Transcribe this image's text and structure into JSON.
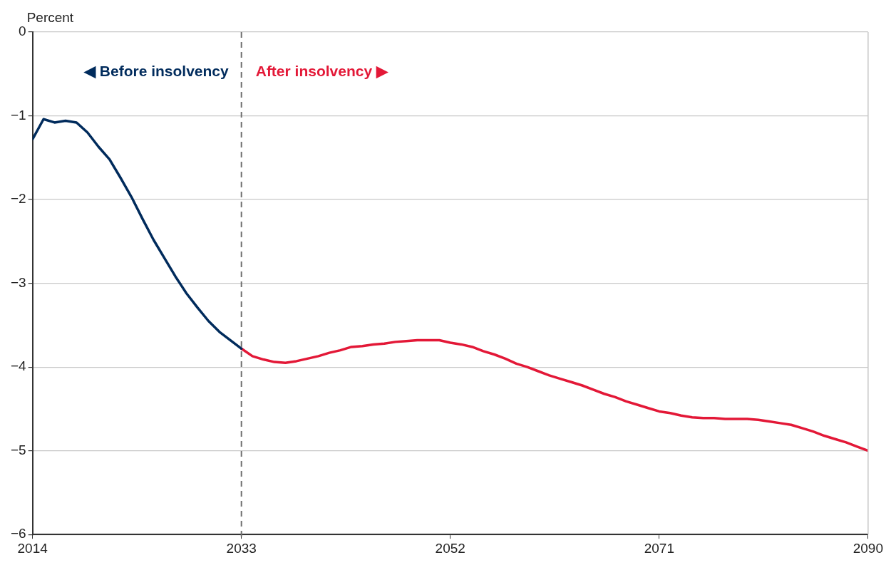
{
  "chart_data": {
    "type": "line",
    "ylabel": "Percent",
    "xlim": [
      2014,
      2090
    ],
    "xticks": [
      2014,
      2033,
      2052,
      2071,
      2090
    ],
    "ylim": [
      -6,
      0
    ],
    "yticks": [
      {
        "value": 0,
        "label": "0"
      },
      {
        "value": -1,
        "label": "−1"
      },
      {
        "value": -2,
        "label": "−2"
      },
      {
        "value": -3,
        "label": "−3"
      },
      {
        "value": -4,
        "label": "−4"
      },
      {
        "value": -5,
        "label": "−5"
      },
      {
        "value": -6,
        "label": "−6"
      }
    ],
    "grid": "y",
    "legend": false,
    "marker": "none",
    "line_style": "solid",
    "ref_lines": [
      {
        "axis": "x",
        "value": 2033,
        "color": "#707070",
        "line_style": "dashed"
      }
    ],
    "series": [
      {
        "name": "◀ Before insolvency",
        "color": "#002b5c",
        "x": [
          2014,
          2015,
          2016,
          2017,
          2018,
          2019,
          2020,
          2021,
          2022,
          2023,
          2024,
          2025,
          2026,
          2027,
          2028,
          2029,
          2030,
          2031,
          2032,
          2033
        ],
        "values": [
          -1.28,
          -1.04,
          -1.08,
          -1.06,
          -1.08,
          -1.2,
          -1.37,
          -1.52,
          -1.74,
          -1.97,
          -2.23,
          -2.48,
          -2.7,
          -2.92,
          -3.12,
          -3.29,
          -3.45,
          -3.58,
          -3.68,
          -3.78
        ]
      },
      {
        "name": "After insolvency ▶",
        "color": "#e31837",
        "x": [
          2033,
          2034,
          2035,
          2036,
          2037,
          2038,
          2039,
          2040,
          2041,
          2042,
          2043,
          2044,
          2045,
          2046,
          2047,
          2048,
          2049,
          2050,
          2051,
          2052,
          2053,
          2054,
          2055,
          2056,
          2057,
          2058,
          2059,
          2060,
          2061,
          2062,
          2063,
          2064,
          2065,
          2066,
          2067,
          2068,
          2069,
          2070,
          2071,
          2072,
          2073,
          2074,
          2075,
          2076,
          2077,
          2078,
          2079,
          2080,
          2081,
          2082,
          2083,
          2084,
          2085,
          2086,
          2087,
          2088,
          2089,
          2090
        ],
        "values": [
          -3.78,
          -3.87,
          -3.91,
          -3.94,
          -3.95,
          -3.93,
          -3.9,
          -3.87,
          -3.83,
          -3.8,
          -3.76,
          -3.75,
          -3.73,
          -3.72,
          -3.7,
          -3.69,
          -3.68,
          -3.68,
          -3.68,
          -3.71,
          -3.73,
          -3.76,
          -3.81,
          -3.85,
          -3.9,
          -3.96,
          -4.0,
          -4.05,
          -4.1,
          -4.14,
          -4.18,
          -4.22,
          -4.27,
          -4.32,
          -4.36,
          -4.41,
          -4.45,
          -4.49,
          -4.53,
          -4.55,
          -4.58,
          -4.6,
          -4.61,
          -4.61,
          -4.62,
          -4.62,
          -4.62,
          -4.63,
          -4.65,
          -4.67,
          -4.69,
          -4.73,
          -4.77,
          -4.82,
          -4.86,
          -4.9,
          -4.95,
          -5.0
        ]
      }
    ]
  }
}
